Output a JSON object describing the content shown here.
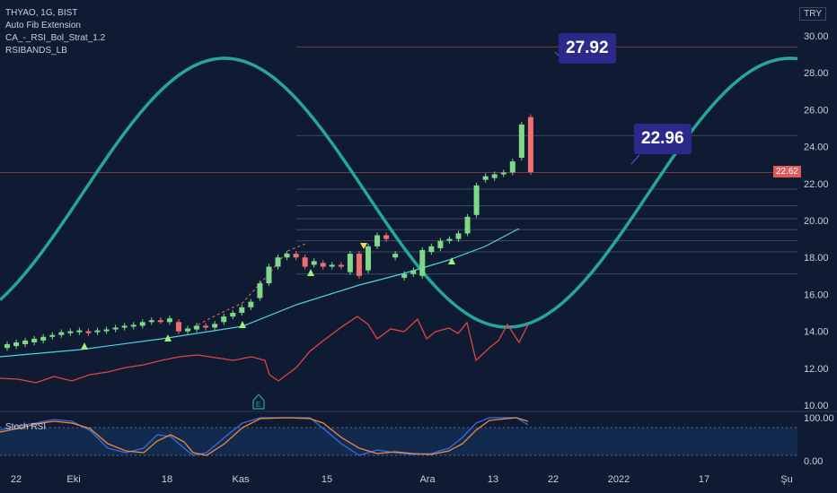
{
  "legend": {
    "symbol": "THYAO, 1G, BIST",
    "indicators": [
      "Auto Fib Extension",
      "CA_-_RSI_Bol_Strat_1.2",
      "RSIBANDS_LB"
    ]
  },
  "currency": "TRY",
  "last_price": "22.62",
  "callouts": [
    "27.92",
    "22.96"
  ],
  "price_axis": [
    "30.00",
    "28.00",
    "26.00",
    "24.00",
    "22.00",
    "20.00",
    "18.00",
    "16.00",
    "14.00",
    "12.00",
    "10.00"
  ],
  "stoch_axis": [
    "100.00",
    "0.00"
  ],
  "stoch_label": "Stoch RSI",
  "time_axis": [
    "22",
    "Eki",
    "18",
    "Kas",
    "15",
    "Ara",
    "13",
    "22",
    "2022",
    "17",
    "Şu"
  ],
  "chart_data": {
    "type": "candlestick",
    "ylim": [
      10,
      30
    ],
    "candles": [
      {
        "o": 13.1,
        "c": 13.3
      },
      {
        "o": 13.2,
        "c": 13.4
      },
      {
        "o": 13.3,
        "c": 13.5
      },
      {
        "o": 13.4,
        "c": 13.6
      },
      {
        "o": 13.5,
        "c": 13.7
      },
      {
        "o": 13.7,
        "c": 13.8
      },
      {
        "o": 13.8,
        "c": 13.95
      },
      {
        "o": 13.9,
        "c": 14.0
      },
      {
        "o": 13.95,
        "c": 14.05
      },
      {
        "o": 14.0,
        "c": 13.9
      },
      {
        "o": 13.95,
        "c": 14.05
      },
      {
        "o": 14.0,
        "c": 14.1
      },
      {
        "o": 14.1,
        "c": 14.2
      },
      {
        "o": 14.2,
        "c": 14.3
      },
      {
        "o": 14.25,
        "c": 14.35
      },
      {
        "o": 14.3,
        "c": 14.5
      },
      {
        "o": 14.5,
        "c": 14.6
      },
      {
        "o": 14.6,
        "c": 14.55
      },
      {
        "o": 14.5,
        "c": 14.7
      },
      {
        "o": 14.5,
        "c": 14.0
      },
      {
        "o": 14.0,
        "c": 14.15
      },
      {
        "o": 14.1,
        "c": 14.3
      },
      {
        "o": 14.3,
        "c": 14.2
      },
      {
        "o": 14.2,
        "c": 14.4
      },
      {
        "o": 14.5,
        "c": 14.8
      },
      {
        "o": 14.8,
        "c": 15.0
      },
      {
        "o": 15.0,
        "c": 15.3
      },
      {
        "o": 15.3,
        "c": 15.6
      },
      {
        "o": 15.8,
        "c": 16.6
      },
      {
        "o": 16.6,
        "c": 17.5
      },
      {
        "o": 17.5,
        "c": 18.0
      },
      {
        "o": 18.0,
        "c": 18.2
      },
      {
        "o": 18.2,
        "c": 18.0
      },
      {
        "o": 18.0,
        "c": 17.5
      },
      {
        "o": 17.6,
        "c": 17.8
      },
      {
        "o": 17.7,
        "c": 17.5
      },
      {
        "o": 17.5,
        "c": 17.6
      },
      {
        "o": 17.6,
        "c": 17.5
      },
      {
        "o": 17.2,
        "c": 18.2
      },
      {
        "o": 18.2,
        "c": 17.0
      },
      {
        "o": 17.3,
        "c": 18.6
      },
      {
        "o": 18.6,
        "c": 19.2
      },
      {
        "o": 19.2,
        "c": 19.0
      },
      {
        "o": 18.0,
        "c": 18.2
      },
      {
        "o": 16.9,
        "c": 17.1
      },
      {
        "o": 17.1,
        "c": 17.3
      },
      {
        "o": 17.0,
        "c": 18.4
      },
      {
        "o": 18.3,
        "c": 18.6
      },
      {
        "o": 18.5,
        "c": 18.9
      },
      {
        "o": 18.9,
        "c": 19.0
      },
      {
        "o": 19.0,
        "c": 19.3
      },
      {
        "o": 19.3,
        "c": 20.2
      },
      {
        "o": 20.3,
        "c": 21.9
      },
      {
        "o": 22.2,
        "c": 22.4
      },
      {
        "o": 22.3,
        "c": 22.5
      },
      {
        "o": 22.5,
        "c": 22.6
      },
      {
        "o": 22.6,
        "c": 23.2
      },
      {
        "o": 23.4,
        "c": 25.2
      },
      {
        "o": 25.6,
        "c": 22.62
      }
    ]
  }
}
